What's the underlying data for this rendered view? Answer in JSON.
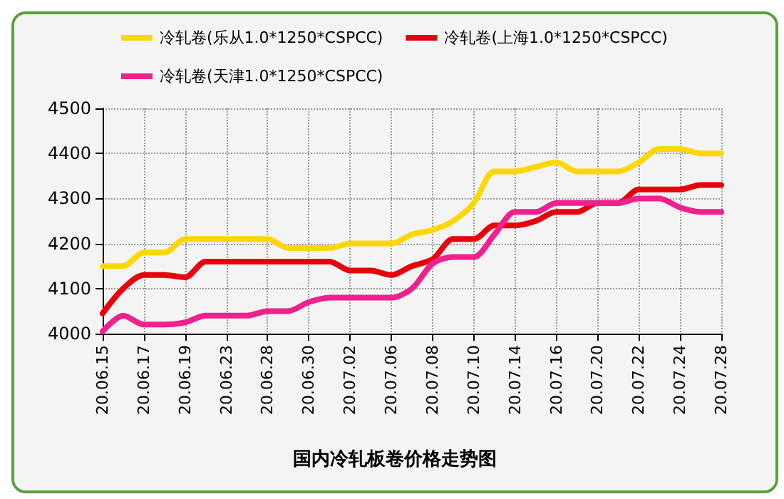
{
  "chart_data": {
    "type": "line",
    "title": "国内冷轧板卷价格走势图",
    "categories": [
      "20.06.15",
      null,
      "20.06.17",
      null,
      "20.06.19",
      null,
      "20.06.23",
      null,
      "20.06.28",
      null,
      "20.06.30",
      null,
      "20.07.02",
      null,
      "20.07.06",
      null,
      "20.07.08",
      null,
      "20.07.10",
      null,
      "20.07.14",
      null,
      "20.07.16",
      null,
      "20.07.20",
      null,
      "20.07.22",
      null,
      "20.07.24",
      null,
      "20.07.28"
    ],
    "series": [
      {
        "name": "冷轧卷(乐从1.0*1250*CSPCC)",
        "color": "#ffd700",
        "values": [
          4150,
          4150,
          4180,
          4180,
          4210,
          4210,
          4210,
          4210,
          4210,
          4190,
          4190,
          4190,
          4200,
          4200,
          4200,
          4220,
          4230,
          4250,
          4290,
          4360,
          4360,
          4370,
          4380,
          4360,
          4360,
          4360,
          4380,
          4410,
          4410,
          4400,
          4400
        ]
      },
      {
        "name": "冷轧卷(上海1.0*1250*CSPCC)",
        "color": "#e8000b",
        "values": [
          4045,
          4100,
          4130,
          4130,
          4125,
          4160,
          4160,
          4160,
          4160,
          4160,
          4160,
          4160,
          4140,
          4140,
          4130,
          4150,
          4165,
          4210,
          4210,
          4240,
          4240,
          4250,
          4270,
          4270,
          4290,
          4290,
          4320,
          4320,
          4320,
          4330,
          4330
        ]
      },
      {
        "name": "冷轧卷(天津1.0*1250*CSPCC)",
        "color": "#f0208c",
        "values": [
          4005,
          4040,
          4020,
          4020,
          4025,
          4040,
          4040,
          4040,
          4050,
          4050,
          4070,
          4080,
          4080,
          4080,
          4080,
          4100,
          4155,
          4170,
          4170,
          4220,
          4270,
          4270,
          4290,
          4290,
          4290,
          4290,
          4300,
          4300,
          4280,
          4270,
          4270
        ]
      }
    ],
    "ylim": [
      4000,
      4500
    ],
    "yticks": [
      4000,
      4100,
      4200,
      4300,
      4400,
      4500
    ],
    "grid": true,
    "legend": "top",
    "marker": "none",
    "line_style": "solid"
  }
}
